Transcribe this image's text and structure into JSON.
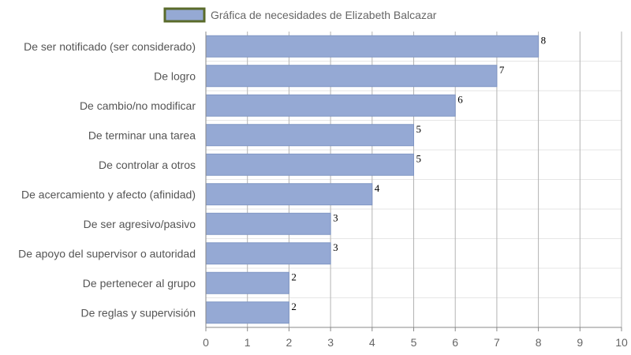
{
  "chart_data": {
    "type": "bar",
    "orientation": "horizontal",
    "legend_position": "top-center",
    "categories": [
      "De ser notificado (ser considerado)",
      "De logro",
      "De cambio/no modificar",
      "De terminar una tarea",
      "De controlar a otros",
      "De acercamiento y afecto (afinidad)",
      "De ser agresivo/pasivo",
      "De apoyo del supervisor o autoridad",
      "De pertenecer al grupo",
      "De reglas y supervisión"
    ],
    "series": [
      {
        "name": "Gráfica de necesidades de Elizabeth Balcazar",
        "values": [
          8,
          7,
          6,
          5,
          5,
          4,
          3,
          3,
          2,
          2
        ],
        "color": "#95a9d4",
        "border_color": "#7f95c4"
      }
    ],
    "legend_swatch_border": "#5a6b2a",
    "xlim": [
      0,
      10
    ],
    "x_ticks": [
      "0",
      "1",
      "2",
      "3",
      "4",
      "5",
      "6",
      "7",
      "8",
      "9",
      "10"
    ],
    "grid": true,
    "grid_color_vertical": "#b3b3b3",
    "grid_color_horizontal": "#e6e6e6",
    "axis_color": "#888888"
  }
}
